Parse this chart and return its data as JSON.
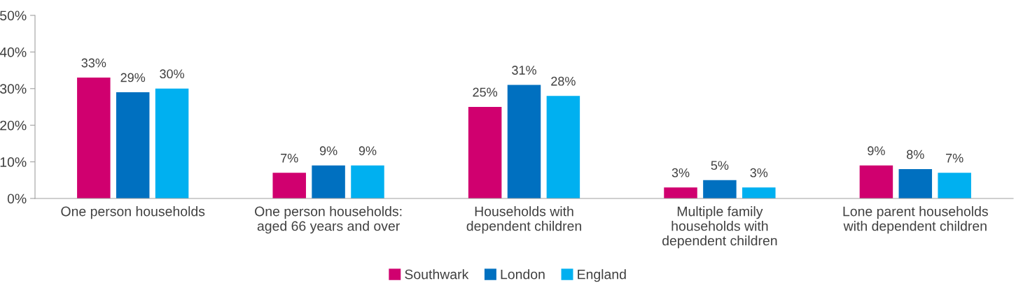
{
  "chart_data": {
    "type": "bar",
    "categories": [
      "One person households",
      "One person households:\naged 66 years and over",
      "Households with\ndependent children",
      "Multiple family\nhouseholds with\ndependent children",
      "Lone parent households\nwith dependent children"
    ],
    "series": [
      {
        "name": "Southwark",
        "color": "#d0006f",
        "values": [
          33,
          7,
          25,
          3,
          9
        ],
        "value_labels": [
          "33%",
          "7%",
          "25%",
          "3%",
          "9%"
        ]
      },
      {
        "name": "London",
        "color": "#0070c0",
        "values": [
          29,
          9,
          31,
          5,
          8
        ],
        "value_labels": [
          "29%",
          "9%",
          "31%",
          "5%",
          "8%"
        ]
      },
      {
        "name": "England",
        "color": "#00b0f0",
        "values": [
          30,
          9,
          28,
          3,
          7
        ],
        "value_labels": [
          "30%",
          "9%",
          "28%",
          "3%",
          "7%"
        ]
      }
    ],
    "ylim": [
      0,
      50
    ],
    "yticks": [
      {
        "value": 0,
        "label": "0%"
      },
      {
        "value": 10,
        "label": "10%"
      },
      {
        "value": 20,
        "label": "20%"
      },
      {
        "value": 30,
        "label": "30%"
      },
      {
        "value": 40,
        "label": "40%"
      },
      {
        "value": 50,
        "label": "50%"
      }
    ],
    "grid": false,
    "legend": "bottom"
  }
}
